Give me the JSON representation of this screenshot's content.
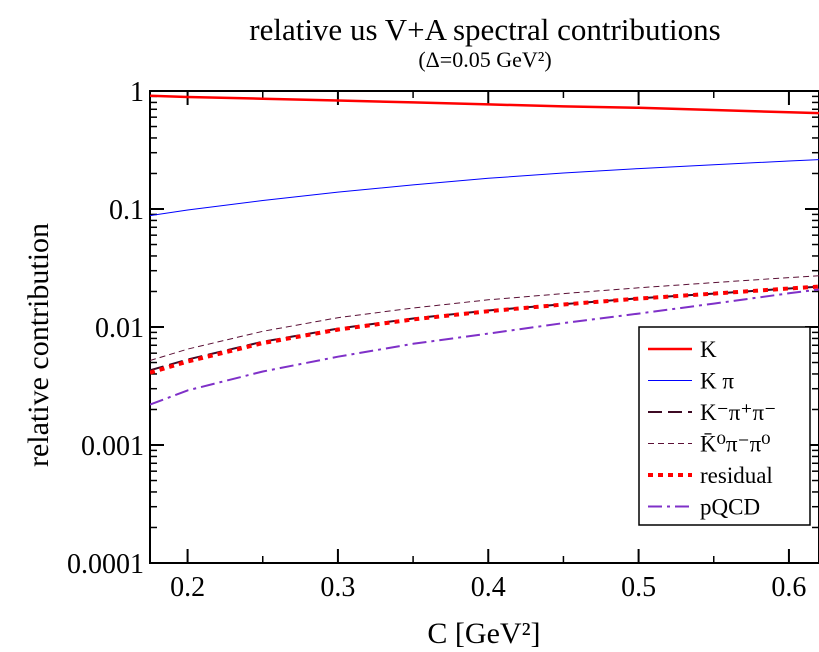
{
  "chart_data": {
    "type": "line",
    "title": "relative us V+A spectral contributions",
    "subtitle": "(Δ=0.05 GeV²)",
    "xlabel": "C [GeV²]",
    "ylabel": "relative contribution",
    "xlim": [
      0.175,
      0.62
    ],
    "ylim": [
      0.0001,
      1
    ],
    "y_scale": "log",
    "grid": false,
    "legend_placement": "bottom-right",
    "x_ticks": [
      {
        "value": 0.2,
        "label": "0.2"
      },
      {
        "value": 0.3,
        "label": "0.3"
      },
      {
        "value": 0.4,
        "label": "0.4"
      },
      {
        "value": 0.5,
        "label": "0.5"
      },
      {
        "value": 0.6,
        "label": "0.6"
      }
    ],
    "y_ticks": [
      {
        "value": 1,
        "label": "1"
      },
      {
        "value": 0.1,
        "label": "0.1"
      },
      {
        "value": 0.01,
        "label": "0.01"
      },
      {
        "value": 0.001,
        "label": "0.001"
      },
      {
        "value": 0.0001,
        "label": "0.0001"
      }
    ],
    "x": [
      0.175,
      0.2,
      0.25,
      0.3,
      0.35,
      0.4,
      0.45,
      0.5,
      0.55,
      0.6,
      0.62
    ],
    "series": [
      {
        "name": "K",
        "color": "#ff0000",
        "style": "solid",
        "width": 2.5,
        "values": [
          0.91,
          0.89,
          0.86,
          0.83,
          0.8,
          0.77,
          0.74,
          0.72,
          0.69,
          0.66,
          0.65
        ]
      },
      {
        "name": "K π",
        "color": "#0000ff",
        "style": "solid",
        "width": 1,
        "values": [
          0.088,
          0.098,
          0.118,
          0.139,
          0.16,
          0.182,
          0.202,
          0.22,
          0.237,
          0.255,
          0.262
        ]
      },
      {
        "name": "K⁻π⁺π⁻",
        "color": "#3d0a24",
        "style": "longdash",
        "width": 2,
        "values": [
          0.0043,
          0.0053,
          0.0075,
          0.0097,
          0.0118,
          0.0138,
          0.0156,
          0.0175,
          0.0192,
          0.0212,
          0.022
        ]
      },
      {
        "name": "K̄⁰π⁻π⁰",
        "color": "#5a0f35",
        "style": "dash",
        "width": 1,
        "values": [
          0.0052,
          0.0065,
          0.0092,
          0.012,
          0.0145,
          0.017,
          0.0192,
          0.0215,
          0.0238,
          0.0262,
          0.0272
        ]
      },
      {
        "name": "residual",
        "color": "#ff0000",
        "style": "dot",
        "width": 4,
        "values": [
          0.0041,
          0.0051,
          0.0073,
          0.0095,
          0.0116,
          0.0136,
          0.0155,
          0.0174,
          0.0192,
          0.0212,
          0.022
        ]
      },
      {
        "name": "pQCD",
        "color": "#7f30c8",
        "style": "dashdot",
        "width": 2,
        "values": [
          0.0022,
          0.0029,
          0.0042,
          0.0056,
          0.0072,
          0.0088,
          0.0108,
          0.013,
          0.0158,
          0.0193,
          0.0208
        ]
      }
    ]
  }
}
